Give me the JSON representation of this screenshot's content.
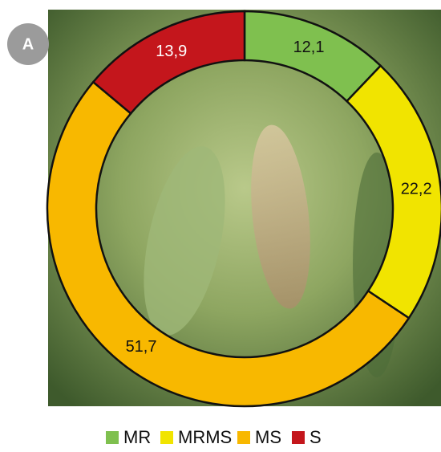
{
  "chart_data": {
    "type": "donut",
    "panel_label": "A",
    "categories": [
      "MR",
      "MRMS",
      "MS",
      "S"
    ],
    "values": [
      12.1,
      22.2,
      51.7,
      13.9
    ],
    "value_labels": [
      "12,1",
      "22,2",
      "51,7",
      "13,9"
    ],
    "colors": [
      "#7fc04f",
      "#f1e400",
      "#f8b800",
      "#c4161c"
    ],
    "legend": "bottom"
  }
}
